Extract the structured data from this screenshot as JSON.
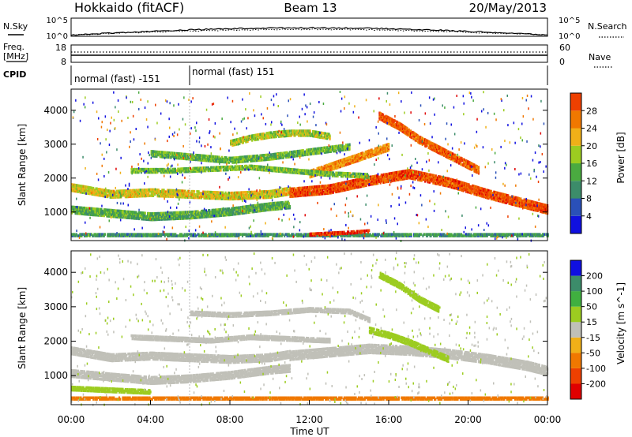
{
  "header": {
    "station": "Hokkaido (fitACF)",
    "beam": "Beam 13",
    "date": "20/May/2013"
  },
  "noise_panel": {
    "left_label": "N.Sky",
    "right_label": "N.Search",
    "left_ticks": [
      "10^5",
      "10^0"
    ],
    "right_ticks": [
      "10^5",
      "10^0"
    ]
  },
  "freq_panel": {
    "left_label_1": "Freq.",
    "left_label_2": "[MHz]",
    "right_label": "Nave",
    "left_ticks": [
      "18",
      "8"
    ],
    "right_ticks": [
      "60",
      "0"
    ]
  },
  "cpid_panel": {
    "label": "CPID",
    "segments": [
      {
        "start_hour": 0,
        "end_hour": 6,
        "text": "normal (fast) -151"
      },
      {
        "start_hour": 6,
        "end_hour": 24,
        "text": "normal (fast) 151"
      }
    ]
  },
  "colors": {
    "power": [
      "#1010e0",
      "#2a50b8",
      "#3c8c6a",
      "#4aaa40",
      "#9ccc20",
      "#f0b018",
      "#f07800",
      "#ee4000",
      "#e00000"
    ],
    "velocity": [
      "#e00000",
      "#ee4000",
      "#f07800",
      "#f0b018",
      "#c0c0b8",
      "#9ccc20",
      "#40b040",
      "#3c8c6a",
      "#1010e0"
    ]
  },
  "chart_data": [
    {
      "type": "heatmap",
      "name": "power",
      "ylabel": "Slant Range [km]",
      "xlim": [
        0,
        24
      ],
      "ylim": [
        180,
        4600
      ],
      "yticks": [
        1000,
        2000,
        3000,
        4000
      ],
      "colorbar_label": "Power [dB]",
      "colorbar_ticks": [
        "4",
        "8",
        "12",
        "16",
        "20",
        "24",
        "28"
      ],
      "colorbar_range": [
        0,
        32
      ],
      "bands": [
        {
          "x": [
            0,
            2,
            4,
            6,
            8,
            10,
            11
          ],
          "y": [
            1700,
            1500,
            1550,
            1500,
            1450,
            1500,
            1600
          ],
          "width": 200,
          "value": 18
        },
        {
          "x": [
            0,
            2,
            4,
            6,
            8,
            10,
            11
          ],
          "y": [
            1050,
            950,
            850,
            900,
            1000,
            1150,
            1200
          ],
          "width": 220,
          "value": 12
        },
        {
          "x": [
            11,
            13,
            15,
            17,
            19,
            21,
            23,
            24
          ],
          "y": [
            1550,
            1650,
            1900,
            2100,
            1850,
            1500,
            1200,
            1050
          ],
          "width": 250,
          "value": 26
        },
        {
          "x": [
            15.5,
            16.5,
            17.5,
            18.5,
            19.5,
            20.5
          ],
          "y": [
            3800,
            3500,
            3100,
            2800,
            2500,
            2200
          ],
          "width": 180,
          "value": 25
        },
        {
          "x": [
            12,
            13,
            14,
            15,
            16
          ],
          "y": [
            2100,
            2300,
            2500,
            2700,
            2900
          ],
          "width": 200,
          "value": 22
        },
        {
          "x": [
            8,
            9,
            10,
            11,
            12,
            13
          ],
          "y": [
            3000,
            3150,
            3250,
            3300,
            3300,
            3200
          ],
          "width": 150,
          "value": 16
        },
        {
          "x": [
            4,
            6,
            8,
            10,
            12,
            14
          ],
          "y": [
            2700,
            2600,
            2500,
            2600,
            2750,
            2900
          ],
          "width": 150,
          "value": 13
        },
        {
          "x": [
            3,
            5,
            7,
            9,
            11,
            13,
            15
          ],
          "y": [
            2200,
            2200,
            2250,
            2300,
            2200,
            2100,
            2050
          ],
          "width": 120,
          "value": 14
        },
        {
          "x": [
            0,
            3,
            6,
            9,
            12,
            15,
            18,
            21,
            24
          ],
          "y": [
            280,
            280,
            280,
            280,
            280,
            280,
            280,
            280,
            280
          ],
          "width": 120,
          "value": 10
        },
        {
          "x": [
            12,
            13,
            14,
            15
          ],
          "y": [
            320,
            350,
            380,
            420
          ],
          "width": 80,
          "value": 28
        }
      ]
    },
    {
      "type": "heatmap",
      "name": "velocity",
      "xlabel": "Time UT",
      "ylabel": "Slant Range [km]",
      "xlim": [
        0,
        24
      ],
      "ylim": [
        180,
        4600
      ],
      "xticks": [
        "00:00",
        "04:00",
        "08:00",
        "12:00",
        "16:00",
        "20:00",
        "00:00"
      ],
      "yticks": [
        1000,
        2000,
        3000,
        4000
      ],
      "colorbar_label": "Velocity [m s^-1]",
      "colorbar_ticks": [
        "-200",
        "-100",
        "-50",
        "-15",
        "15",
        "50",
        "100",
        "200"
      ],
      "bands": [
        {
          "x": [
            0,
            2,
            4,
            6,
            8,
            10,
            11
          ],
          "y": [
            1700,
            1500,
            1550,
            1500,
            1450,
            1500,
            1600
          ],
          "width": 200,
          "value": 0
        },
        {
          "x": [
            0,
            2,
            4,
            6,
            8,
            10,
            11
          ],
          "y": [
            1050,
            950,
            850,
            900,
            1000,
            1150,
            1200
          ],
          "width": 220,
          "value": 0
        },
        {
          "x": [
            11,
            13,
            15,
            17,
            19,
            21,
            23,
            24
          ],
          "y": [
            1550,
            1650,
            1750,
            1700,
            1600,
            1450,
            1250,
            1100
          ],
          "width": 230,
          "value": 0
        },
        {
          "x": [
            15.5,
            16.5,
            17.5,
            18.5
          ],
          "y": [
            3900,
            3600,
            3200,
            2900
          ],
          "width": 150,
          "value": 30
        },
        {
          "x": [
            15,
            16,
            17,
            18,
            19
          ],
          "y": [
            2300,
            2150,
            1950,
            1700,
            1450
          ],
          "width": 160,
          "value": 30
        },
        {
          "x": [
            6,
            8,
            10,
            12,
            14,
            15
          ],
          "y": [
            2800,
            2750,
            2800,
            2900,
            2850,
            2600
          ],
          "width": 130,
          "value": 0
        },
        {
          "x": [
            3,
            5,
            7,
            9,
            11,
            13
          ],
          "y": [
            2100,
            2050,
            2000,
            2100,
            2050,
            2000
          ],
          "width": 120,
          "value": 0
        },
        {
          "x": [
            0,
            3,
            6,
            9,
            12,
            15,
            18,
            21,
            24
          ],
          "y": [
            300,
            300,
            300,
            300,
            300,
            300,
            300,
            300,
            300
          ],
          "width": 120,
          "value": -60
        },
        {
          "x": [
            0,
            2,
            4
          ],
          "y": [
            600,
            550,
            500
          ],
          "width": 100,
          "value": 30
        }
      ]
    }
  ]
}
